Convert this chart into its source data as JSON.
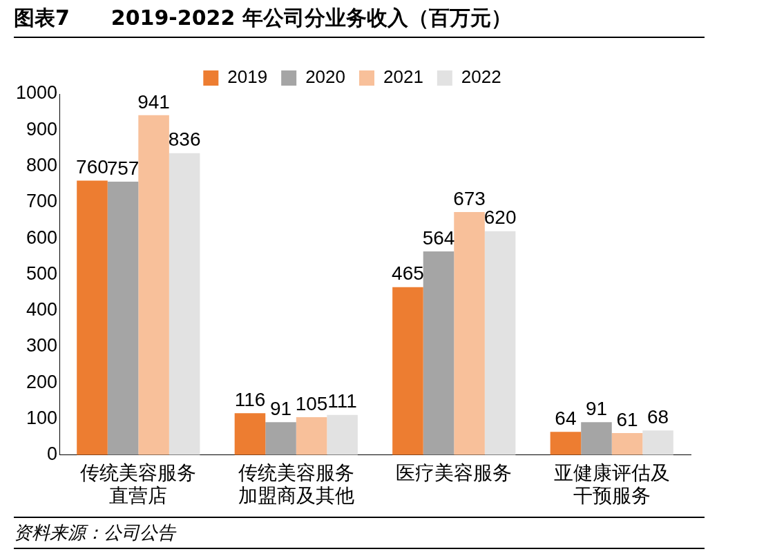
{
  "chart_data": {
    "type": "bar",
    "title": "图表7　　2019-2022 年公司分业务收入（百万元）",
    "categories": [
      "传统美容服务直营店",
      "传统美容服务加盟商及其他",
      "医疗美容服务",
      "亚健康评估及干预服务"
    ],
    "series": [
      {
        "name": "2019",
        "color": "#ed7d31",
        "values": [
          760,
          116,
          465,
          64
        ]
      },
      {
        "name": "2020",
        "color": "#a5a5a5",
        "values": [
          757,
          91,
          564,
          91
        ]
      },
      {
        "name": "2021",
        "color": "#f8c09a",
        "values": [
          941,
          105,
          673,
          61
        ]
      },
      {
        "name": "2022",
        "color": "#e2e2e2",
        "values": [
          836,
          111,
          620,
          68
        ]
      }
    ],
    "ylim": [
      0,
      1000
    ],
    "yticks": [
      0,
      100,
      200,
      300,
      400,
      500,
      600,
      700,
      800,
      900,
      1000
    ],
    "grid": false,
    "legend": "top",
    "data_labels": true,
    "annotations": [
      "资料来源：公司公告"
    ]
  }
}
